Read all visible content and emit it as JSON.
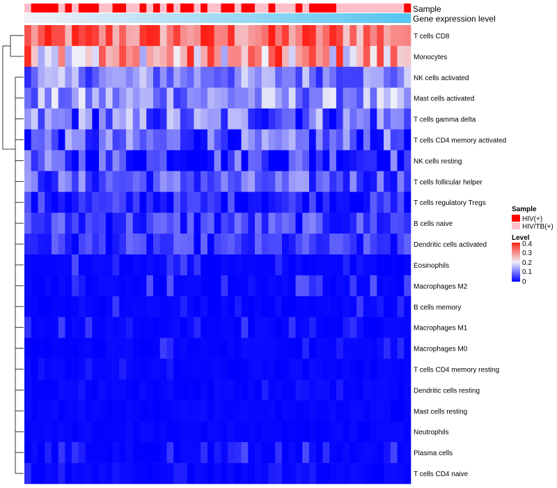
{
  "chart_data": {
    "type": "heatmap",
    "title": "",
    "annotations": {
      "sample_label": "Sample",
      "expression_label": "Gene expression level",
      "sample_colors": {
        "HIV(+)": "#ff0000",
        "HIV/TB(+)": "#ffc0cb"
      },
      "expression_gradient": [
        "#f0f0f8",
        "#87ceeb",
        "#55c5f0"
      ],
      "sample_groups": [
        "HIV/TB(+)",
        "HIV(+)",
        "HIV(+)",
        "HIV(+)",
        "HIV(+)",
        "HIV/TB(+)",
        "HIV(+)",
        "HIV/TB(+)",
        "HIV(+)",
        "HIV(+)",
        "HIV(+)",
        "HIV/TB(+)",
        "HIV/TB(+)",
        "HIV(+)",
        "HIV(+)",
        "HIV/TB(+)",
        "HIV/TB(+)",
        "HIV(+)",
        "HIV/TB(+)",
        "HIV(+)",
        "HIV/TB(+)",
        "HIV(+)",
        "HIV/TB(+)",
        "HIV(+)",
        "HIV(+)",
        "HIV/TB(+)",
        "HIV(+)",
        "HIV/TB(+)",
        "HIV/TB(+)",
        "HIV(+)",
        "HIV(+)",
        "HIV/TB(+)",
        "HIV(+)",
        "HIV(+)",
        "HIV/TB(+)",
        "HIV/TB(+)",
        "HIV(+)",
        "HIV/TB(+)",
        "HIV/TB(+)",
        "HIV/TB(+)",
        "HIV(+)",
        "HIV/TB(+)",
        "HIV(+)",
        "HIV(+)",
        "HIV(+)",
        "HIV(+)",
        "HIV/TB(+)",
        "HIV/TB(+)",
        "HIV/TB(+)",
        "HIV/TB(+)",
        "HIV/TB(+)",
        "HIV/TB(+)",
        "HIV/TB(+)",
        "HIV/TB(+)",
        "HIV/TB(+)",
        "HIV/TB(+)",
        "HIV(+)"
      ]
    },
    "rows": [
      "T cells CD8",
      "Monocytes",
      "NK cells activated",
      "Mast cells activated",
      "T cells gamma delta",
      "T cells CD4 memory activated",
      "NK cells resting",
      "T cells follicular helper",
      "T cells regulatory  Tregs",
      "B cells naive",
      "Dendritic cells activated",
      "Eosinophils",
      "Macrophages M2",
      "B cells memory",
      "Macrophages M1",
      "Macrophages M0",
      "T cells CD4 memory resting",
      "Dendritic cells resting",
      "Mast cells resting",
      "Neutrophils",
      "Plasma cells",
      "T cells CD4 naive"
    ],
    "n_samples": 57,
    "color_scale": {
      "title": "Level",
      "stops": [
        0,
        0.1,
        0.2,
        0.3,
        0.4
      ],
      "ticks": [
        "0.4",
        "0.3",
        "0.2",
        "0.1",
        "0"
      ],
      "low_color": "#0000ff",
      "mid_color": "#f0f0f8",
      "high_color": "#ff0000"
    },
    "legend": {
      "sample_title": "Sample",
      "sample_items": [
        {
          "label": "HIV(+)",
          "color": "#ff0000"
        },
        {
          "label": "HIV/TB(+)",
          "color": "#ffc0cb"
        }
      ]
    },
    "row_means": [
      0.32,
      0.26,
      0.11,
      0.12,
      0.09,
      0.07,
      0.05,
      0.07,
      0.03,
      0.05,
      0.04,
      0.03,
      0.03,
      0.02,
      0.02,
      0.02,
      0.01,
      0.01,
      0.005,
      0.003,
      0.02,
      0.01
    ],
    "row_ranges": [
      [
        0.22,
        0.42
      ],
      [
        0.14,
        0.42
      ],
      [
        0.03,
        0.18
      ],
      [
        0.04,
        0.2
      ],
      [
        0.0,
        0.2
      ],
      [
        0.0,
        0.17
      ],
      [
        0.0,
        0.18
      ],
      [
        0.01,
        0.15
      ],
      [
        0.0,
        0.1
      ],
      [
        0.0,
        0.12
      ],
      [
        0.0,
        0.1
      ],
      [
        0.0,
        0.08
      ],
      [
        0.0,
        0.09
      ],
      [
        0.0,
        0.07
      ],
      [
        0.0,
        0.07
      ],
      [
        0.0,
        0.06
      ],
      [
        0.0,
        0.04
      ],
      [
        0.0,
        0.04
      ],
      [
        0.0,
        0.01
      ],
      [
        0.0,
        0.01
      ],
      [
        0.0,
        0.09
      ],
      [
        0.0,
        0.06
      ]
    ],
    "dendrogram": {
      "merges": [
        [
          2,
          3,
          0.3
        ],
        [
          4,
          5,
          0.35
        ],
        [
          6,
          7,
          0.42
        ],
        [
          16,
          17,
          0.2
        ],
        [
          18,
          19,
          0.15
        ],
        [
          13,
          14,
          0.5
        ],
        [
          9,
          10,
          0.55
        ],
        [
          11,
          12,
          0.48
        ]
      ]
    }
  }
}
